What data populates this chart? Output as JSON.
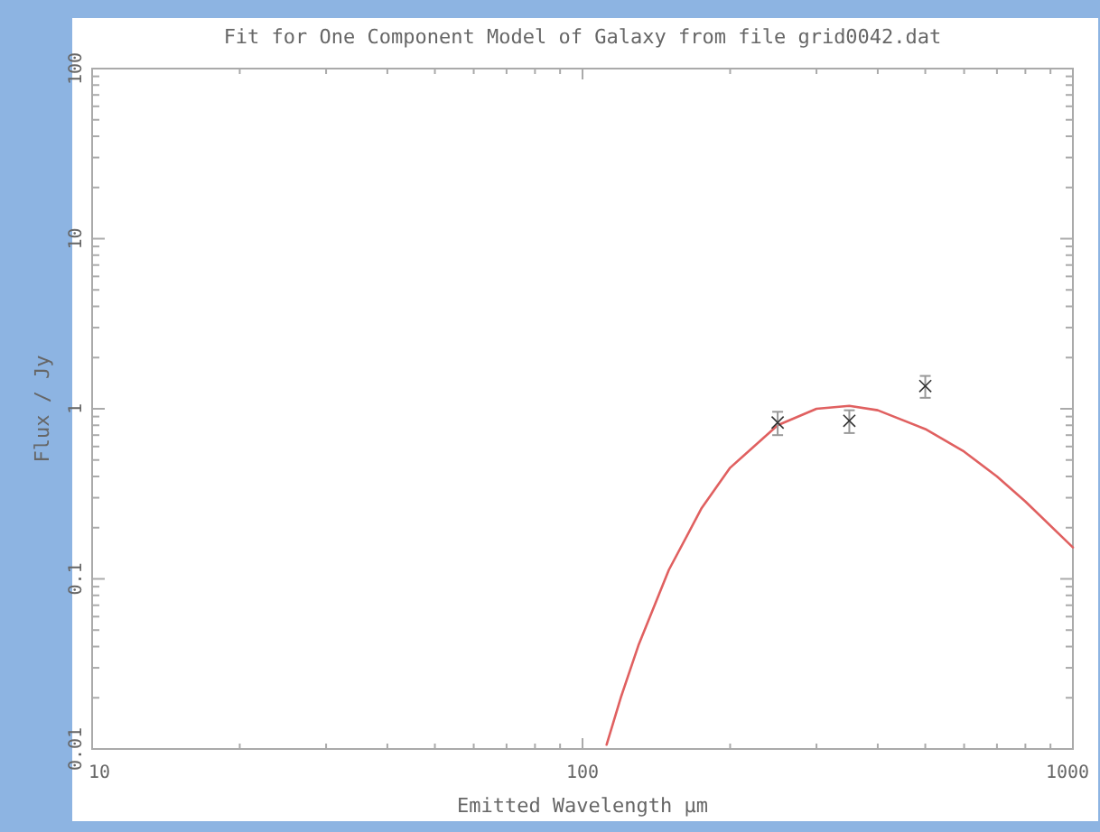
{
  "chart_data": {
    "type": "line",
    "title": "Fit for One Component Model of Galaxy from file grid0042.dat",
    "xlabel": "Emitted Wavelength μm",
    "ylabel": "Flux / Jy",
    "log": "xy",
    "grid": false,
    "xlim": [
      10,
      1000
    ],
    "ylim": [
      0.01,
      100
    ],
    "xticks": [
      10,
      {
        "value": 20,
        "label": null
      },
      {
        "value": 30,
        "label": null
      },
      {
        "value": 40,
        "label": null
      },
      {
        "value": 50,
        "label": null
      },
      {
        "value": 60,
        "label": null
      },
      {
        "value": 70,
        "label": null
      },
      {
        "value": 80,
        "label": null
      },
      {
        "value": 90,
        "label": null
      },
      100,
      {
        "value": 200,
        "label": null
      },
      {
        "value": 300,
        "label": null
      },
      {
        "value": 400,
        "label": null
      },
      {
        "value": 500,
        "label": null
      },
      {
        "value": 600,
        "label": null
      },
      {
        "value": 700,
        "label": null
      },
      {
        "value": 800,
        "label": null
      },
      {
        "value": 900,
        "label": null
      },
      1000
    ],
    "yticks": [
      0.01,
      {
        "value": 0.02,
        "label": null
      },
      {
        "value": 0.03,
        "label": null
      },
      {
        "value": 0.04,
        "label": null
      },
      {
        "value": 0.05,
        "label": null
      },
      {
        "value": 0.06,
        "label": null
      },
      {
        "value": 0.07,
        "label": null
      },
      {
        "value": 0.08,
        "label": null
      },
      {
        "value": 0.09,
        "label": null
      },
      0.1,
      {
        "value": 0.2,
        "label": null
      },
      {
        "value": 0.3,
        "label": null
      },
      {
        "value": 0.4,
        "label": null
      },
      {
        "value": 0.5,
        "label": null
      },
      {
        "value": 0.6,
        "label": null
      },
      {
        "value": 0.7,
        "label": null
      },
      {
        "value": 0.8,
        "label": null
      },
      {
        "value": 0.9,
        "label": null
      },
      1,
      {
        "value": 2,
        "label": null
      },
      {
        "value": 3,
        "label": null
      },
      {
        "value": 4,
        "label": null
      },
      {
        "value": 5,
        "label": null
      },
      {
        "value": 6,
        "label": null
      },
      {
        "value": 7,
        "label": null
      },
      {
        "value": 8,
        "label": null
      },
      {
        "value": 9,
        "label": null
      },
      10,
      {
        "value": 20,
        "label": null
      },
      {
        "value": 30,
        "label": null
      },
      {
        "value": 40,
        "label": null
      },
      {
        "value": 50,
        "label": null
      },
      {
        "value": 60,
        "label": null
      },
      {
        "value": 70,
        "label": null
      },
      {
        "value": 80,
        "label": null
      },
      {
        "value": 90,
        "label": null
      },
      100
    ],
    "series": [
      {
        "color": "#e06060",
        "x": [
          112,
          120,
          130,
          150,
          175,
          200,
          250,
          300,
          350,
          400,
          500,
          600,
          700,
          800,
          1000
        ],
        "values": [
          0.0106,
          0.0205,
          0.0406,
          0.113,
          0.261,
          0.45,
          0.8,
          1.0,
          1.04,
          0.98,
          0.76,
          0.56,
          0.4,
          0.285,
          0.153
        ]
      },
      {
        "type": "scatter",
        "color": "#333333",
        "marker": "cross",
        "x": [
          250,
          350,
          500
        ],
        "values": [
          0.83,
          0.85,
          1.36
        ],
        "errors": [
          0.13,
          0.13,
          0.2
        ]
      }
    ]
  }
}
